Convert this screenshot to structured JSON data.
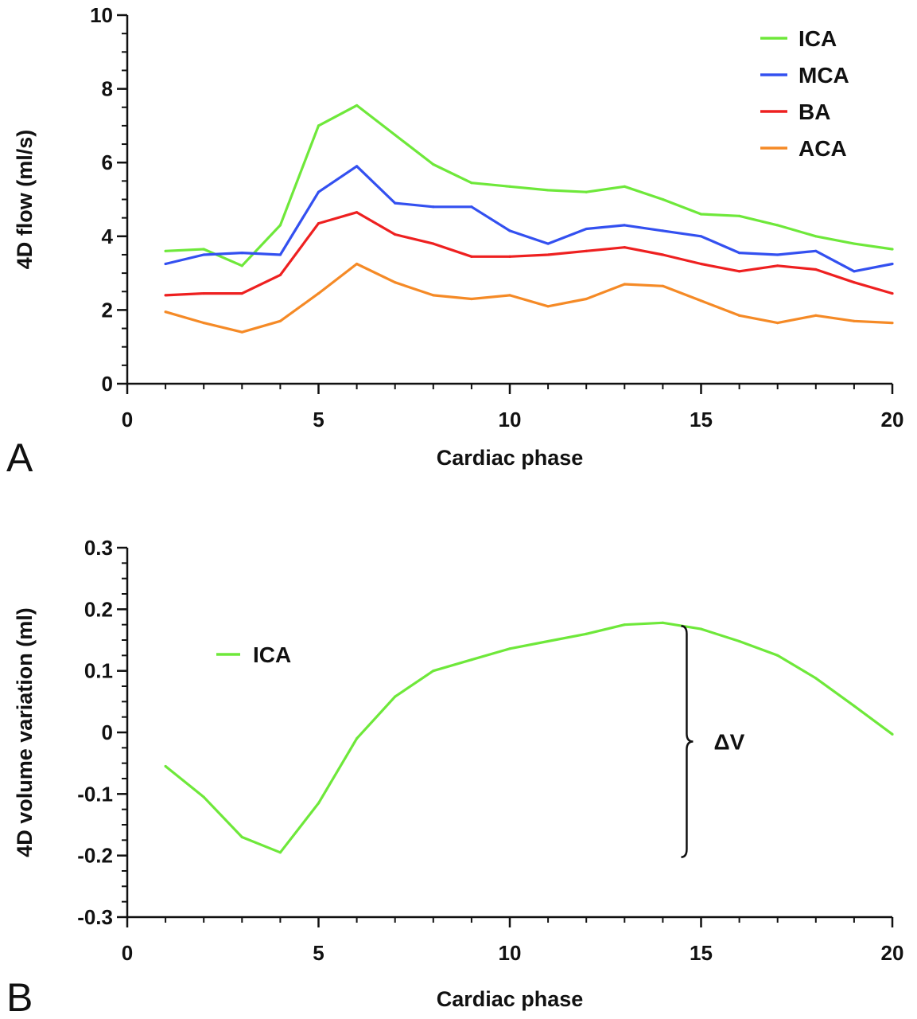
{
  "chart_data": [
    {
      "panel": "A",
      "type": "line",
      "xlabel": "Cardiac phase",
      "ylabel": "4D flow (ml/s)",
      "xlim": [
        0,
        20
      ],
      "ylim": [
        0,
        10
      ],
      "xticks": [
        "0",
        "5",
        "10",
        "15",
        "20"
      ],
      "yticks": [
        "0",
        "2",
        "4",
        "6",
        "8",
        "10"
      ],
      "legend_position": "top-right",
      "x": [
        1,
        2,
        3,
        4,
        5,
        6,
        7,
        8,
        9,
        10,
        11,
        12,
        13,
        14,
        15,
        16,
        17,
        18,
        19,
        20
      ],
      "series": [
        {
          "name": "ICA",
          "color": "#6ee83a",
          "values": [
            3.6,
            3.65,
            3.2,
            4.3,
            7.0,
            7.55,
            6.75,
            5.95,
            5.45,
            5.35,
            5.25,
            5.2,
            5.35,
            5.0,
            4.6,
            4.55,
            4.3,
            4.0,
            3.8,
            3.65
          ]
        },
        {
          "name": "MCA",
          "color": "#3350f0",
          "values": [
            3.25,
            3.5,
            3.55,
            3.5,
            5.2,
            5.9,
            4.9,
            4.8,
            4.8,
            4.15,
            3.8,
            4.2,
            4.3,
            4.15,
            4.0,
            3.55,
            3.5,
            3.6,
            3.05,
            3.25
          ]
        },
        {
          "name": "BA",
          "color": "#ee2020",
          "values": [
            2.4,
            2.45,
            2.45,
            2.95,
            4.35,
            4.65,
            4.05,
            3.8,
            3.45,
            3.45,
            3.5,
            3.6,
            3.7,
            3.5,
            3.25,
            3.05,
            3.2,
            3.1,
            2.75,
            2.45
          ]
        },
        {
          "name": "ACA",
          "color": "#f58a26",
          "values": [
            1.95,
            1.65,
            1.4,
            1.7,
            2.45,
            3.25,
            2.75,
            2.4,
            2.3,
            2.4,
            2.1,
            2.3,
            2.7,
            2.65,
            2.25,
            1.85,
            1.65,
            1.85,
            1.7,
            1.65
          ]
        }
      ]
    },
    {
      "panel": "B",
      "type": "line",
      "xlabel": "Cardiac phase",
      "ylabel": "4D volume variation (ml)",
      "xlim": [
        0,
        20
      ],
      "ylim": [
        -0.3,
        0.3
      ],
      "xticks": [
        "0",
        "5",
        "10",
        "15",
        "20"
      ],
      "yticks": [
        "-0.3",
        "-0.2",
        "-0.1",
        "0",
        "0.1",
        "0.2",
        "0.3"
      ],
      "legend_position": "upper-left",
      "x": [
        1,
        2,
        3,
        4,
        5,
        6,
        7,
        8,
        9,
        10,
        11,
        12,
        13,
        14,
        15,
        16,
        17,
        18,
        19,
        20
      ],
      "series": [
        {
          "name": "ICA",
          "color": "#6ee83a",
          "values": [
            -0.055,
            -0.105,
            -0.17,
            -0.195,
            -0.115,
            -0.01,
            0.058,
            0.1,
            0.118,
            0.136,
            0.148,
            0.16,
            0.175,
            0.178,
            0.168,
            0.148,
            0.125,
            0.088,
            0.043,
            -0.003
          ]
        }
      ],
      "annotation": {
        "label": "ΔV",
        "from": 0.178,
        "to": -0.2,
        "x": 14.5
      }
    }
  ]
}
